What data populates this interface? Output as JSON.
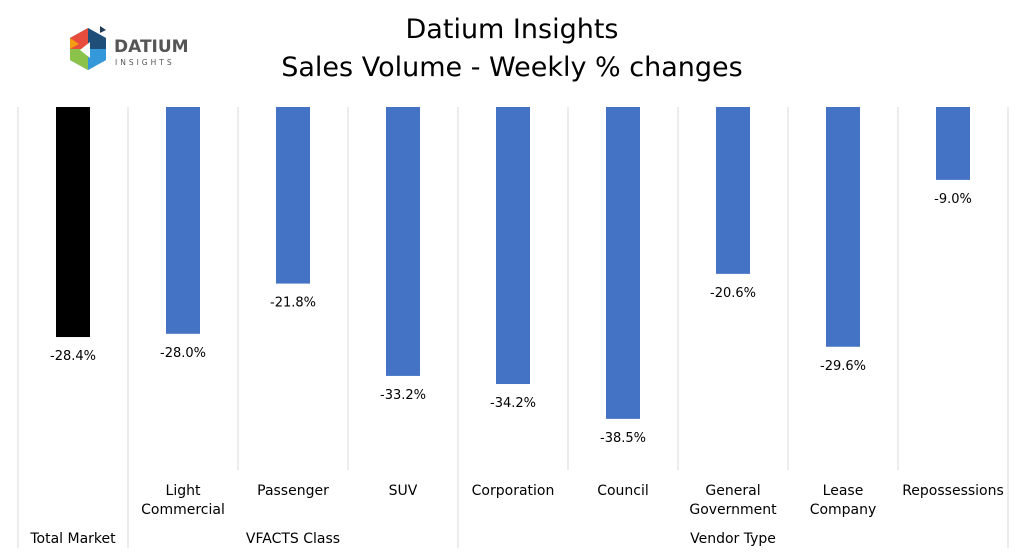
{
  "logo": {
    "text": "DATIUM",
    "subtext": "INSIGHTS"
  },
  "chart_data": {
    "type": "bar",
    "title": "Datium Insights",
    "subtitle": "Sales Volume - Weekly % changes",
    "categories": [
      "Total Market",
      "Light Commercial",
      "Passenger",
      "SUV",
      "Corporation",
      "Council",
      "General Government",
      "Lease Company",
      "Repossessions"
    ],
    "category_lines": [
      [
        "",
        ""
      ],
      [
        "Light",
        "Commercial"
      ],
      [
        "Passenger",
        ""
      ],
      [
        "SUV",
        ""
      ],
      [
        "Corporation",
        ""
      ],
      [
        "Council",
        ""
      ],
      [
        "General",
        "Government"
      ],
      [
        "Lease",
        "Company"
      ],
      [
        "Repossessions",
        ""
      ]
    ],
    "groups": [
      {
        "label": "Total Market",
        "start": 0,
        "end": 0
      },
      {
        "label": "VFACTS Class",
        "start": 1,
        "end": 3
      },
      {
        "label": "Vendor Type",
        "start": 4,
        "end": 8
      }
    ],
    "values": [
      -28.4,
      -28.0,
      -21.8,
      -33.2,
      -34.2,
      -38.5,
      -20.6,
      -29.6,
      -9.0
    ],
    "data_labels": [
      "-28.4%",
      "-28.0%",
      "-21.8%",
      "-33.2%",
      "-34.2%",
      "-38.5%",
      "-20.6%",
      "-29.6%",
      "-9.0%"
    ],
    "colors": {
      "highlight": "#000000",
      "default": "#4472C4",
      "grid": "#D9D9D9"
    },
    "ylim": [
      -45,
      0
    ],
    "grid": "vertical category separators",
    "legend": "none"
  }
}
